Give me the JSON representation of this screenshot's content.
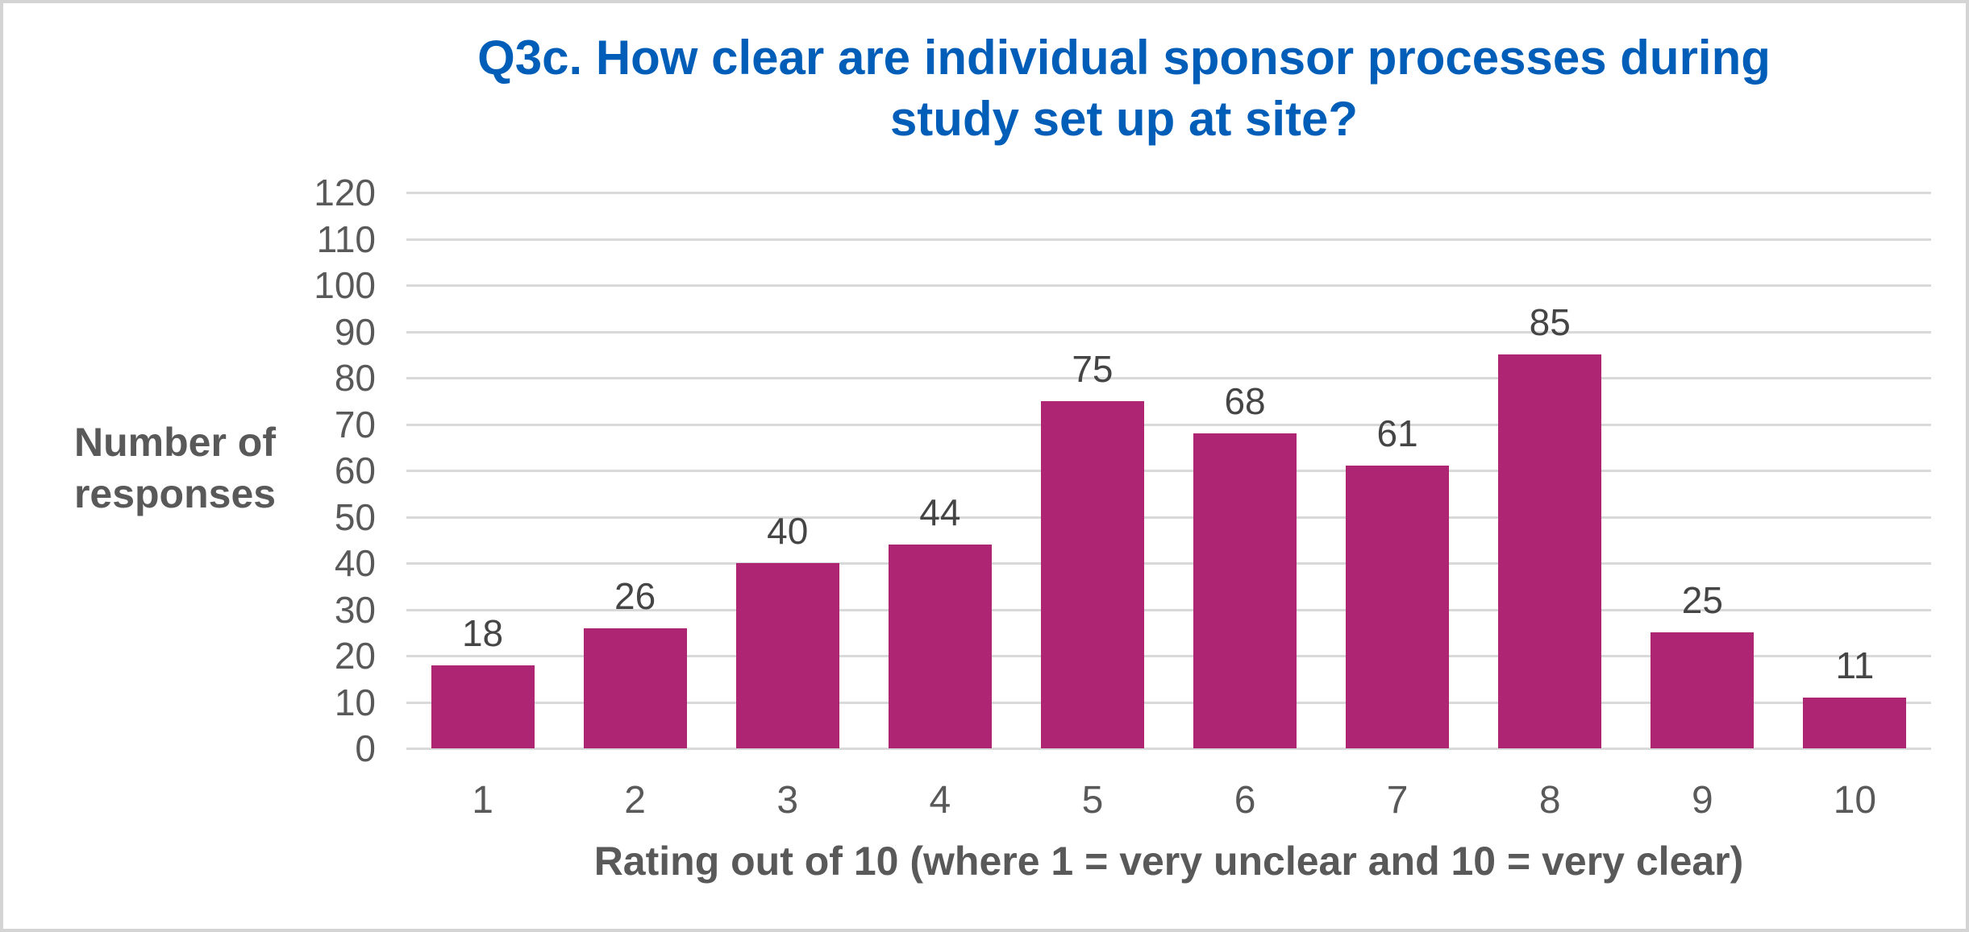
{
  "title": {
    "line1": "Q3c. How clear are individual sponsor processes during",
    "line2": "study set up at site?"
  },
  "y_axis": {
    "title_line1": "Number of",
    "title_line2": "responses"
  },
  "x_axis": {
    "title": "Rating out of 10 (where 1 = very unclear and 10 = very clear)"
  },
  "chart_data": {
    "type": "bar",
    "title": "Q3c. How clear are individual sponsor processes during study set up at site?",
    "categories": [
      "1",
      "2",
      "3",
      "4",
      "5",
      "6",
      "7",
      "8",
      "9",
      "10"
    ],
    "values": [
      18,
      26,
      40,
      44,
      75,
      68,
      61,
      85,
      25,
      11
    ],
    "xlabel": "Rating out of 10 (where 1 = very unclear and 10 = very clear)",
    "ylabel": "Number of responses",
    "ylim": [
      0,
      120
    ],
    "ytick_step": 10,
    "grid": true,
    "legend": false,
    "colors": {
      "bar": "#AE2573",
      "title": "#005EB8",
      "axis_text": "#595959",
      "data_label": "#454545",
      "gridline": "#D9D9D9",
      "frame_border": "#D4D4D4"
    }
  }
}
